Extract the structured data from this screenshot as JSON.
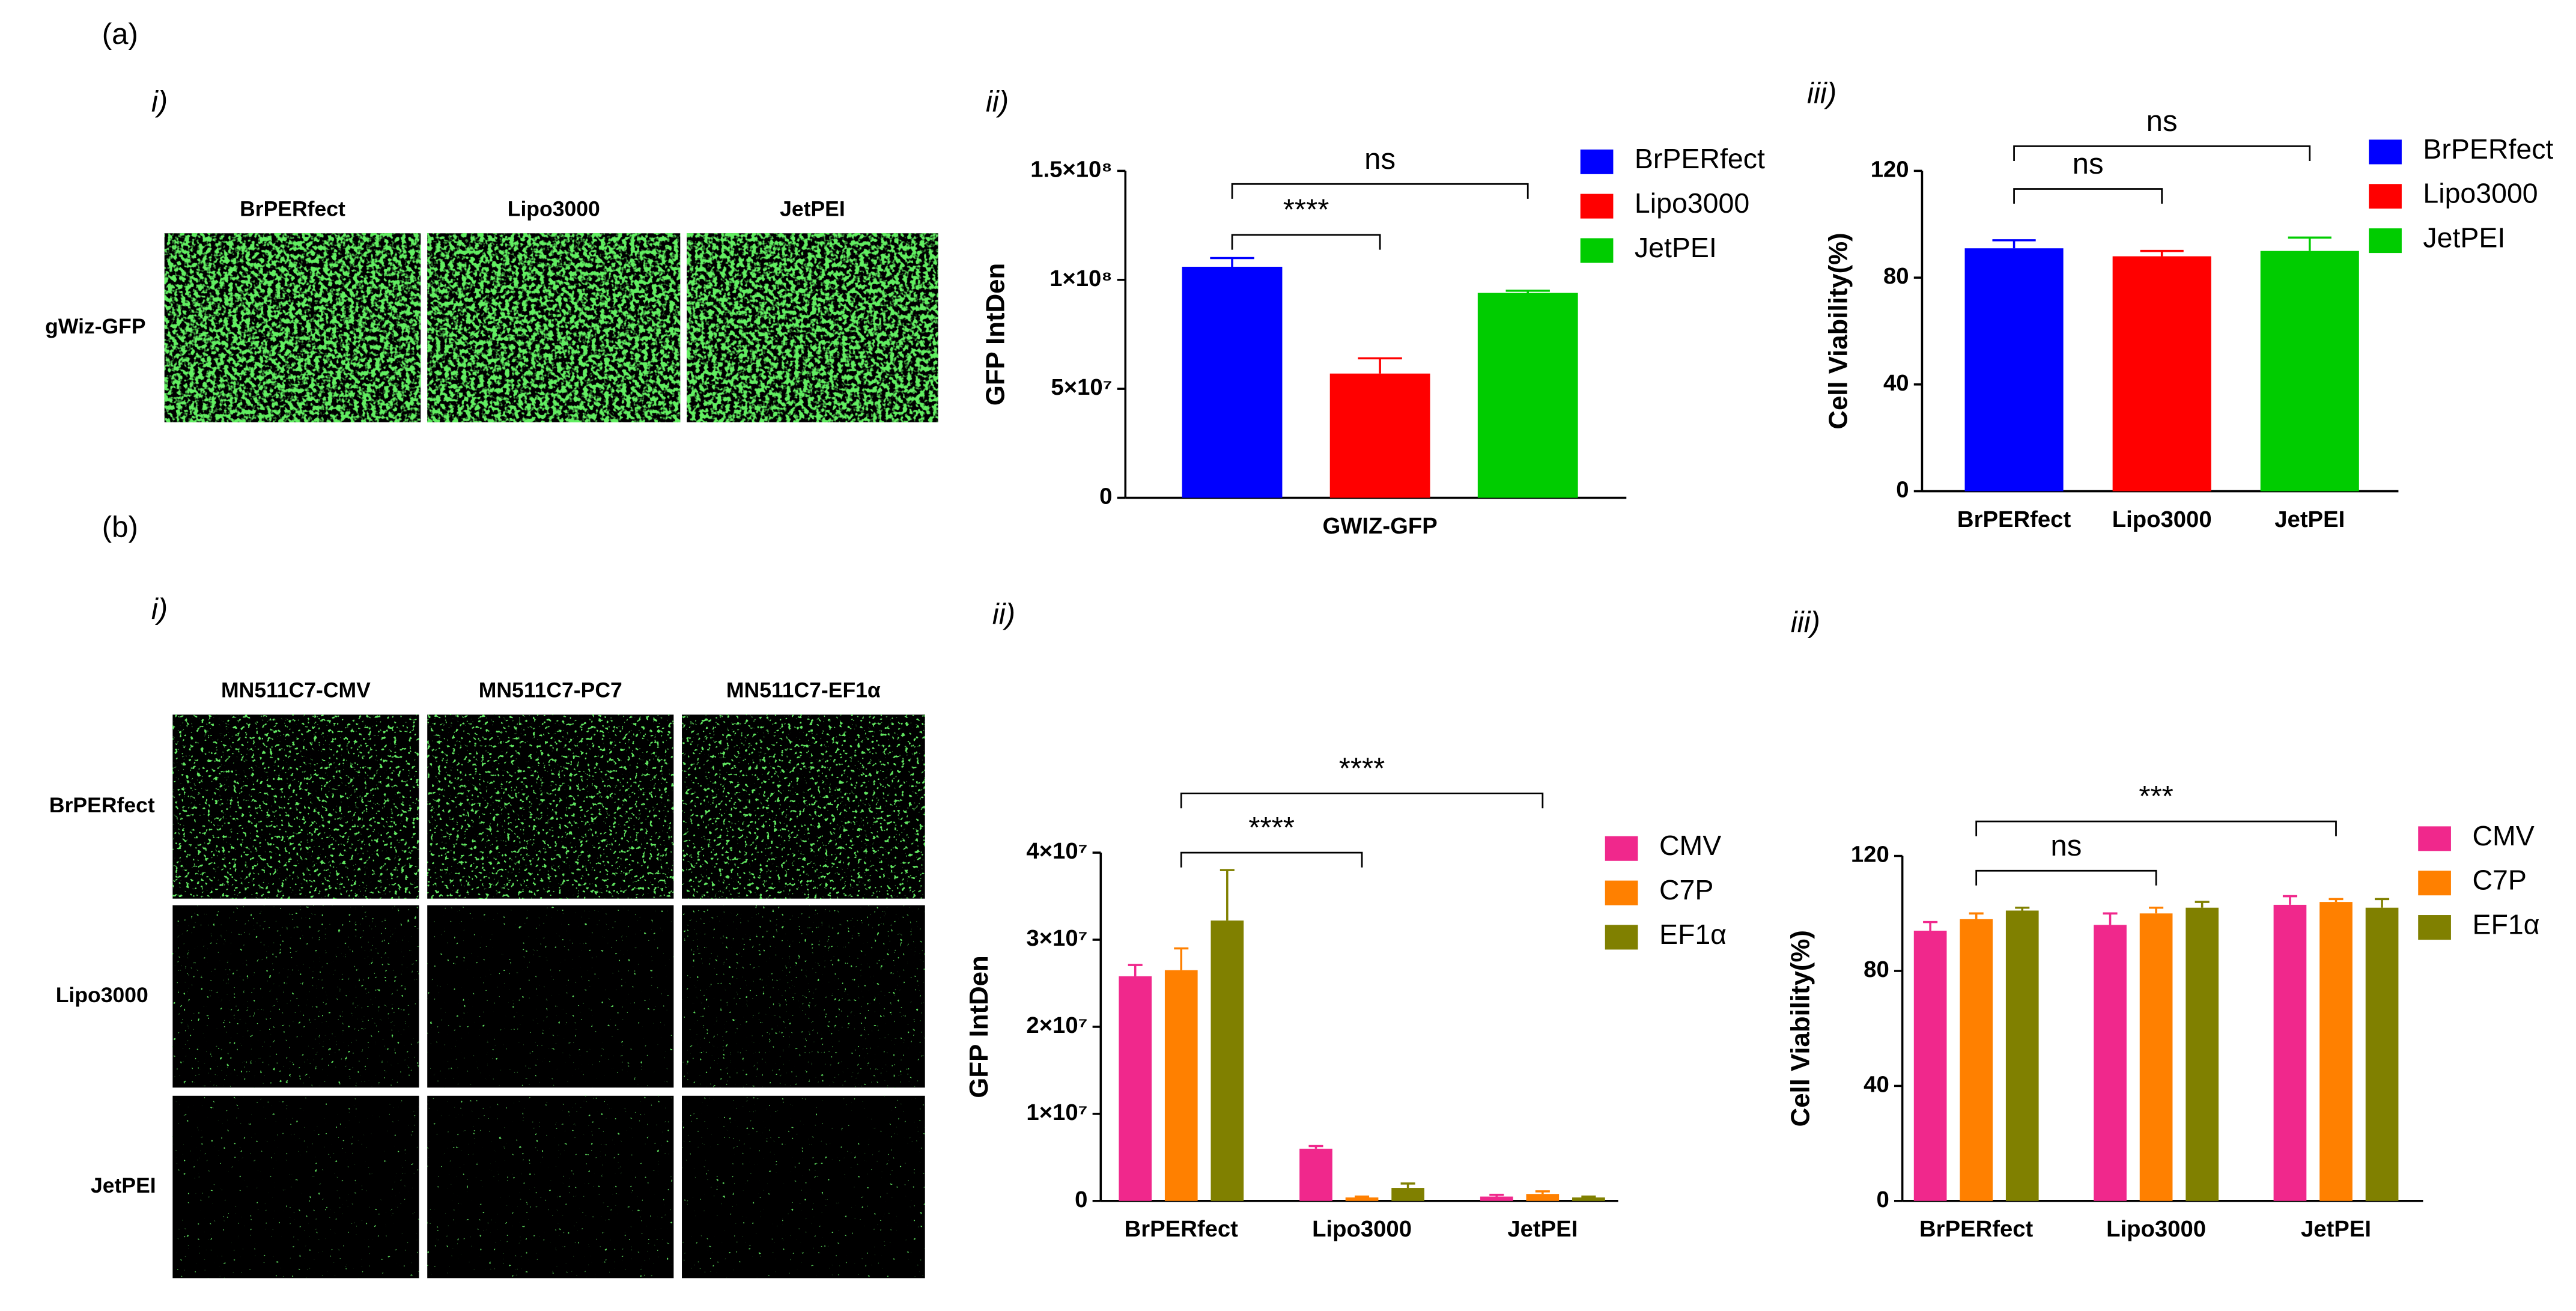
{
  "panel_labels": [
    "(a)",
    "i)",
    "ii)",
    "iii)",
    "(b)",
    "i)",
    "ii)",
    "iii)"
  ],
  "micrographs": [
    {
      "columns": [
        "BrPERfect",
        "Lipo3000",
        "JetPEI"
      ],
      "rows": [
        "gWiz-GFP"
      ]
    },
    {
      "columns": [
        "MN511C7-CMV",
        "MN511C7-PC7",
        "MN511C7-EF1α"
      ],
      "rows": [
        "BrPERfect",
        "Lipo3000",
        "JetPEI"
      ]
    }
  ],
  "chart_data": [
    {
      "type": "bar",
      "ylabel": "GFP IntDen",
      "categories": [
        "GWIZ-GFP"
      ],
      "series": [
        {
          "name": "BrPERfect",
          "color": "#0000ff",
          "values": [
            106000000
          ],
          "errors": [
            4000000
          ]
        },
        {
          "name": "Lipo3000",
          "color": "#ff0000",
          "values": [
            57000000
          ],
          "errors": [
            7000000
          ]
        },
        {
          "name": "JetPEI",
          "color": "#00cc00",
          "values": [
            94000000
          ],
          "errors": [
            1000000
          ]
        }
      ],
      "ylim": [
        0,
        150000000
      ],
      "yticks": [
        0,
        {
          "value": 50000000,
          "label": "5×10⁷"
        },
        {
          "value": 100000000,
          "label": "1×10⁸"
        },
        {
          "value": 150000000,
          "label": "1.5×10⁸"
        }
      ],
      "legend": "right",
      "annotations": [
        {
          "text": "****",
          "between": [
            "BrPERfect",
            "Lipo3000"
          ]
        },
        {
          "text": "ns",
          "between": [
            "BrPERfect",
            "JetPEI"
          ]
        }
      ]
    },
    {
      "type": "bar",
      "ylabel": "Cell Viability(%)",
      "categories": [
        "BrPERfect",
        "Lipo3000",
        "JetPEI"
      ],
      "values": [
        91,
        88,
        90
      ],
      "errors": [
        3,
        2,
        5
      ],
      "colors": [
        "#0000ff",
        "#ff0000",
        "#00cc00"
      ],
      "ylim": [
        0,
        120
      ],
      "yticks": [
        0,
        40,
        80,
        120
      ],
      "legend": "right",
      "annotations": [
        {
          "text": "ns",
          "between": [
            "BrPERfect",
            "Lipo3000"
          ]
        },
        {
          "text": "ns",
          "between": [
            "BrPERfect",
            "JetPEI"
          ]
        }
      ]
    },
    {
      "type": "bar",
      "ylabel": "GFP IntDen",
      "categories": [
        "BrPERfect",
        "Lipo3000",
        "JetPEI"
      ],
      "series": [
        {
          "name": "CMV",
          "color": "#f0288c",
          "values": [
            25800000,
            6000000,
            500000
          ],
          "errors": [
            1300000,
            300000,
            200000
          ]
        },
        {
          "name": "C7P",
          "color": "#ff8000",
          "values": [
            26500000,
            400000,
            800000
          ],
          "errors": [
            2500000,
            100000,
            300000
          ]
        },
        {
          "name": "EF1α",
          "color": "#808000",
          "values": [
            32200000,
            1500000,
            400000
          ],
          "errors": [
            5800000,
            500000,
            100000
          ]
        }
      ],
      "ylim": [
        0,
        40000000
      ],
      "yticks": [
        0,
        {
          "value": 10000000,
          "label": "1×10⁷"
        },
        {
          "value": 20000000,
          "label": "2×10⁷"
        },
        {
          "value": 30000000,
          "label": "3×10⁷"
        },
        {
          "value": 40000000,
          "label": "4×10⁷"
        }
      ],
      "legend": "right",
      "annotations": [
        {
          "text": "****",
          "between": [
            "BrPERfect",
            "Lipo3000"
          ]
        },
        {
          "text": "****",
          "between": [
            "BrPERfect",
            "JetPEI"
          ]
        }
      ]
    },
    {
      "type": "bar",
      "ylabel": "Cell Viability(%)",
      "categories": [
        "BrPERfect",
        "Lipo3000",
        "JetPEI"
      ],
      "series": [
        {
          "name": "CMV",
          "color": "#f0288c",
          "values": [
            94,
            96,
            103
          ],
          "errors": [
            3,
            4,
            3
          ]
        },
        {
          "name": "C7P",
          "color": "#ff8000",
          "values": [
            98,
            100,
            104
          ],
          "errors": [
            2,
            2,
            1
          ]
        },
        {
          "name": "EF1α",
          "color": "#808000",
          "values": [
            101,
            102,
            102
          ],
          "errors": [
            1,
            2,
            3
          ]
        }
      ],
      "ylim": [
        0,
        120
      ],
      "yticks": [
        0,
        40,
        80,
        120
      ],
      "legend": "right",
      "annotations": [
        {
          "text": "ns",
          "between": [
            "BrPERfect",
            "Lipo3000"
          ]
        },
        {
          "text": "***",
          "between": [
            "BrPERfect",
            "JetPEI"
          ]
        }
      ]
    }
  ]
}
